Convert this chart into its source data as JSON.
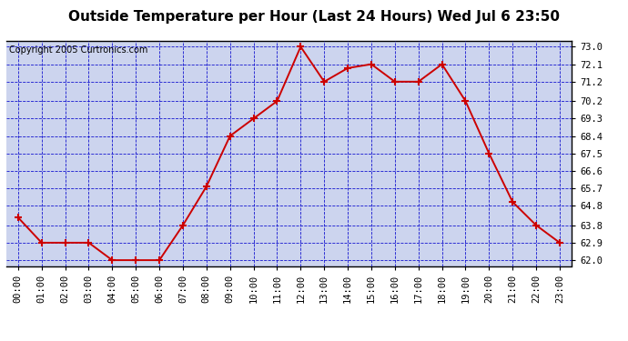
{
  "title": "Outside Temperature per Hour (Last 24 Hours) Wed Jul 6 23:50",
  "copyright": "Copyright 2005 Curtronics.com",
  "hours": [
    "00:00",
    "01:00",
    "02:00",
    "03:00",
    "04:00",
    "05:00",
    "06:00",
    "07:00",
    "08:00",
    "09:00",
    "10:00",
    "11:00",
    "12:00",
    "13:00",
    "14:00",
    "15:00",
    "16:00",
    "17:00",
    "18:00",
    "19:00",
    "20:00",
    "21:00",
    "22:00",
    "23:00"
  ],
  "temps": [
    64.2,
    62.9,
    62.9,
    62.9,
    62.0,
    62.0,
    62.0,
    63.8,
    65.8,
    68.4,
    69.3,
    70.2,
    73.0,
    71.2,
    71.9,
    72.1,
    71.2,
    71.2,
    72.1,
    70.2,
    67.5,
    65.0,
    63.8,
    62.9
  ],
  "yticks": [
    62.0,
    62.9,
    63.8,
    64.8,
    65.7,
    66.6,
    67.5,
    68.4,
    69.3,
    70.2,
    71.2,
    72.1,
    73.0
  ],
  "ylim": [
    61.7,
    73.3
  ],
  "line_color": "#cc0000",
  "marker_color": "#cc0000",
  "plot_bg_color": "#ccd4ee",
  "fig_bg_color": "#ffffff",
  "grid_color": "#0000cc",
  "title_fontsize": 11,
  "copyright_fontsize": 7,
  "tick_fontsize": 7.5
}
